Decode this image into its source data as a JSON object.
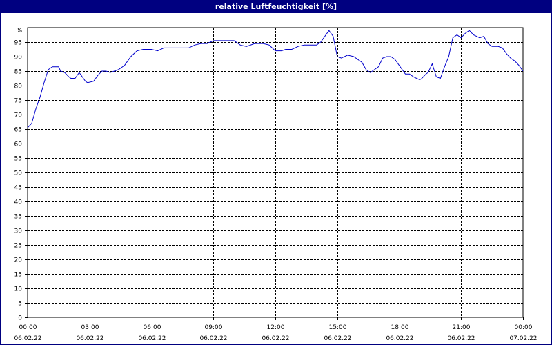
{
  "window": {
    "title": "relative Luftfeuchtigkeit [%]"
  },
  "chart_data": {
    "type": "line",
    "title": "relative Luftfeuchtigkeit [%]",
    "xlabel": "",
    "ylabel": "",
    "y_unit_label": "%",
    "ylim": [
      0,
      100
    ],
    "xlim": [
      0,
      24
    ],
    "y_ticks": [
      0,
      5,
      10,
      15,
      20,
      25,
      30,
      35,
      40,
      45,
      50,
      55,
      60,
      65,
      70,
      75,
      80,
      85,
      90,
      95
    ],
    "x_ticks": [
      {
        "time": "00:00",
        "date": "06.02.22",
        "h": 0
      },
      {
        "time": "03:00",
        "date": "06.02.22",
        "h": 3
      },
      {
        "time": "06:00",
        "date": "06.02.22",
        "h": 6
      },
      {
        "time": "09:00",
        "date": "06.02.22",
        "h": 9
      },
      {
        "time": "12:00",
        "date": "06.02.22",
        "h": 12
      },
      {
        "time": "15:00",
        "date": "06.02.22",
        "h": 15
      },
      {
        "time": "18:00",
        "date": "06.02.22",
        "h": 18
      },
      {
        "time": "21:00",
        "date": "06.02.22",
        "h": 21
      },
      {
        "time": "00:00",
        "date": "07.02.22",
        "h": 24
      }
    ],
    "grid": true,
    "line_color": "#0000cc",
    "series": [
      {
        "x": [
          0,
          0.2,
          0.4,
          0.6,
          0.8,
          1.0,
          1.2,
          1.5,
          1.6,
          1.8,
          2.0,
          2.1,
          2.3,
          2.5,
          2.6,
          2.8,
          2.9,
          3.2,
          3.4,
          3.6,
          3.8,
          4.0,
          4.4,
          4.7,
          5.0,
          5.3,
          5.6,
          6.0,
          6.3,
          6.6,
          7.0,
          7.4,
          7.8,
          8.1,
          8.4,
          8.7,
          9.0,
          9.3,
          9.6,
          9.8,
          10.0,
          10.3,
          10.6,
          11.0,
          11.2,
          11.4,
          11.7,
          12.0,
          12.3,
          12.5,
          12.8,
          13.1,
          13.4,
          13.7,
          14.0,
          14.2,
          14.4,
          14.6,
          14.8,
          15.0,
          15.2,
          15.5,
          15.8,
          16.0,
          16.2,
          16.4,
          16.6,
          16.8,
          17.0,
          17.2,
          17.4,
          17.6,
          17.8,
          18.1,
          18.3,
          18.5,
          18.7,
          19.0,
          19.1,
          19.3,
          19.4,
          19.6,
          19.8,
          20.0,
          20.2,
          20.4,
          20.6,
          20.8,
          21.0,
          21.2,
          21.4,
          21.6,
          21.9,
          22.1,
          22.3,
          22.5,
          22.8,
          23.0,
          23.2,
          23.4,
          23.6,
          23.8,
          24.0
        ],
        "y": [
          65.5,
          67,
          72,
          76,
          81,
          85.5,
          86.5,
          86.5,
          85,
          84.5,
          83,
          82.5,
          82.5,
          84.5,
          83.5,
          81.5,
          81,
          81.5,
          83.5,
          85,
          85,
          84.5,
          85.5,
          87,
          90,
          92,
          92.5,
          92.5,
          92,
          93,
          93,
          93,
          93,
          94,
          94.5,
          94.5,
          95.5,
          95.5,
          95.5,
          95.5,
          95.5,
          94,
          93.5,
          94.5,
          94.5,
          94.5,
          94,
          92,
          92,
          92.5,
          92.5,
          93.5,
          94,
          94,
          94,
          95,
          97,
          99,
          97,
          90,
          89.5,
          90.5,
          90,
          89,
          88,
          85.5,
          84.5,
          85.5,
          86.5,
          89.5,
          90,
          90,
          89,
          86,
          84,
          84,
          83,
          82,
          82.5,
          84,
          84.5,
          87.5,
          83,
          82.5,
          86.5,
          90,
          96.5,
          97.5,
          96.5,
          98,
          99,
          97.5,
          96.5,
          97,
          94.5,
          93.5,
          93.5,
          93,
          91,
          89.5,
          88.5,
          87,
          85
        ]
      }
    ]
  }
}
